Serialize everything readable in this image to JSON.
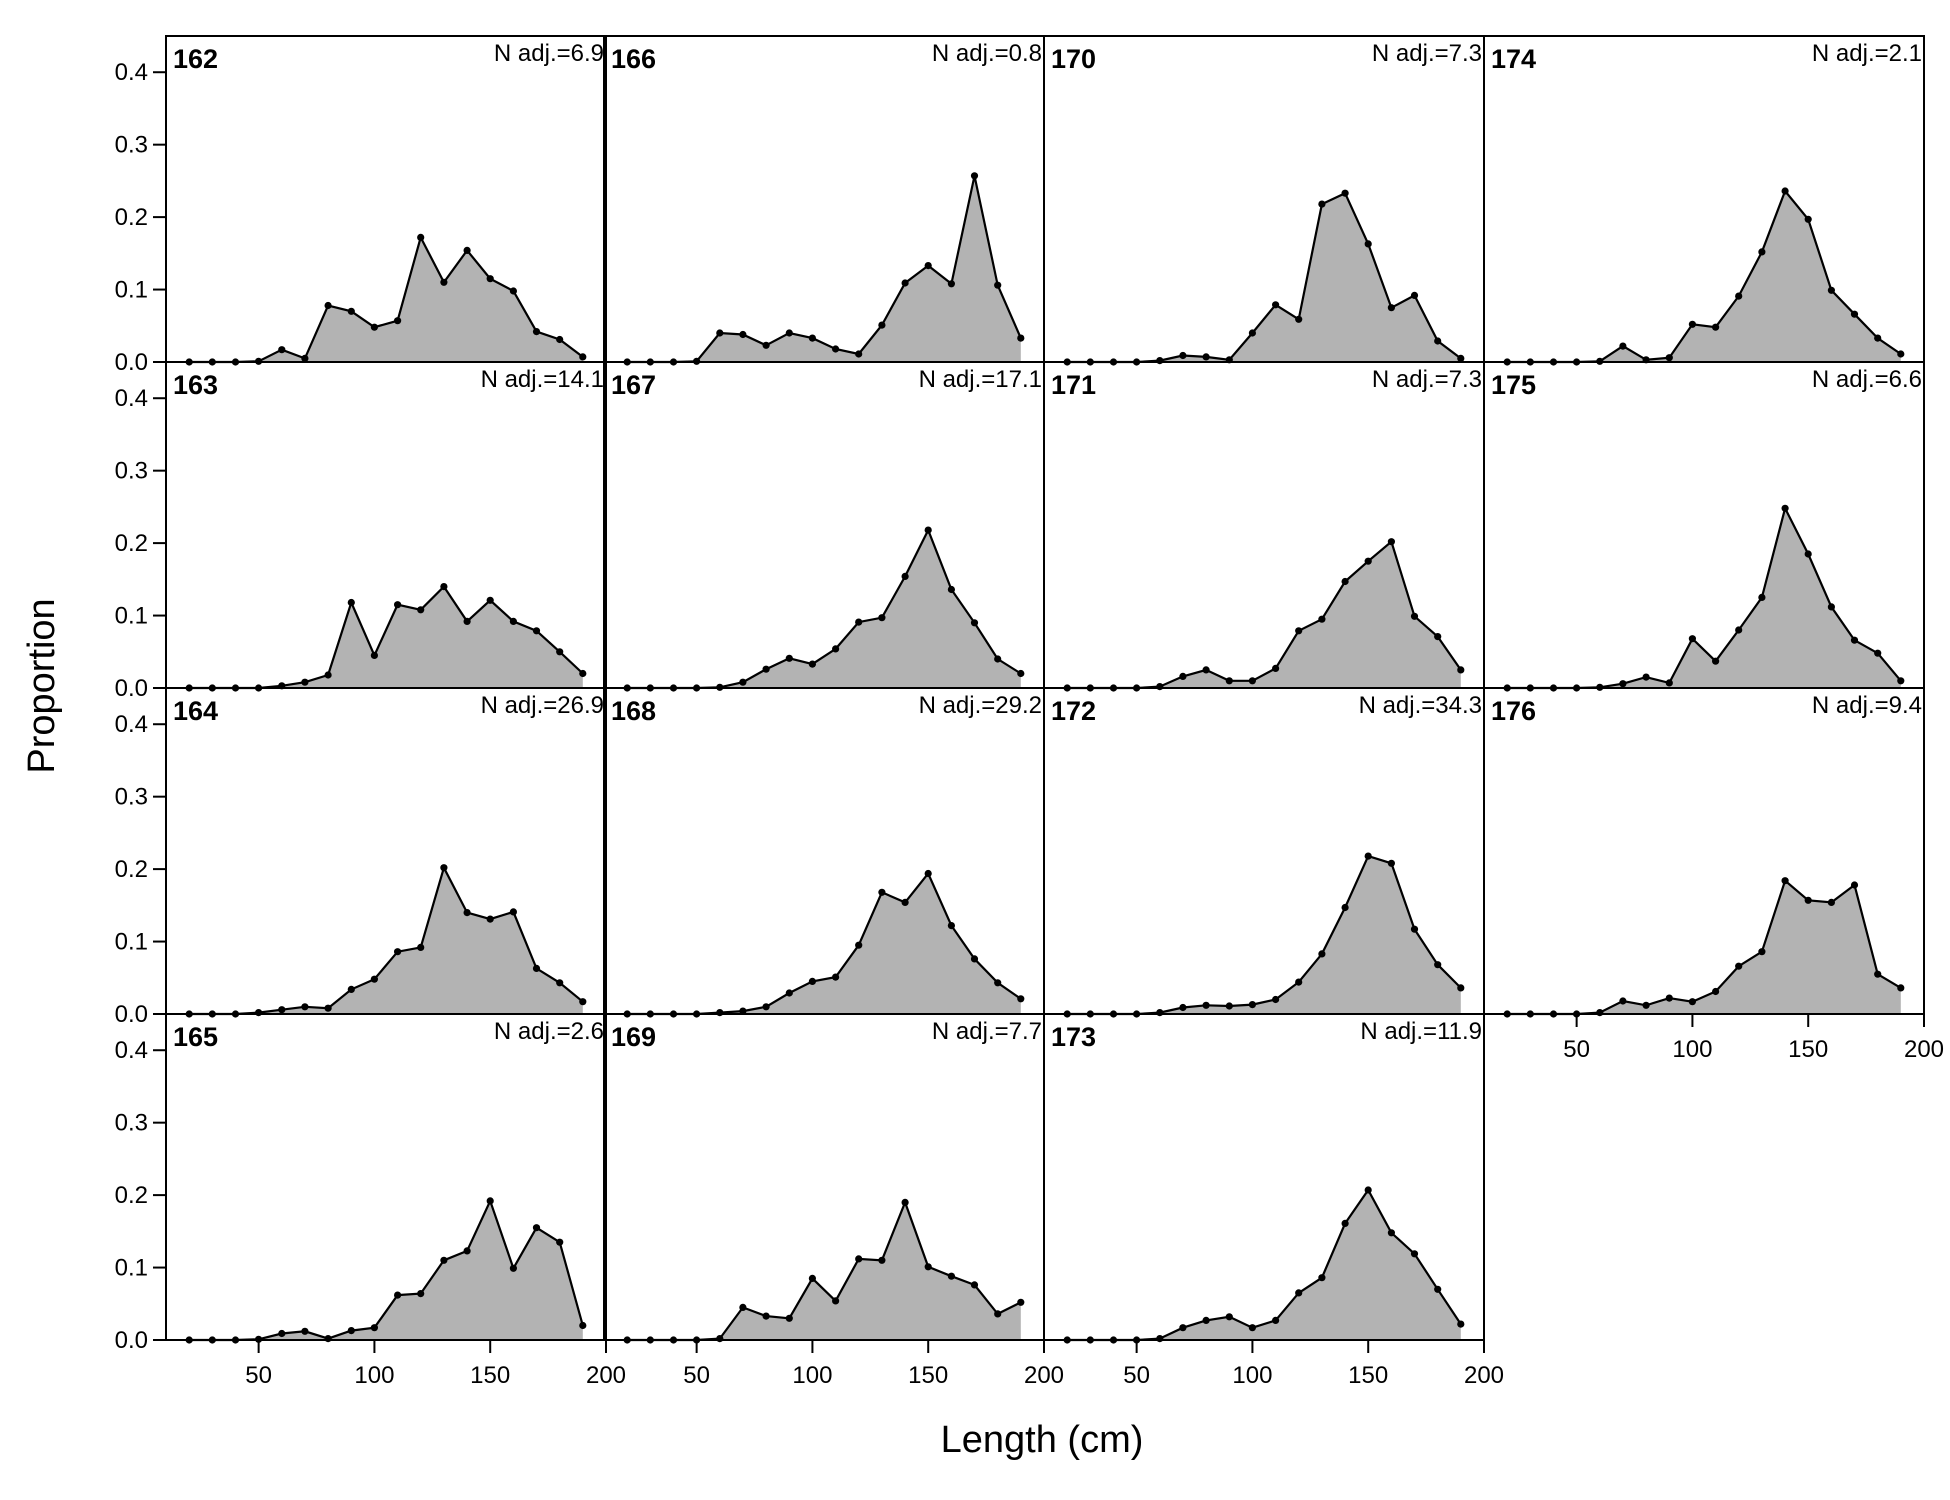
{
  "chart_data": {
    "type": "area",
    "xlabel": "Length (cm)",
    "ylabel": "Proportion",
    "xlim": [
      10,
      200
    ],
    "ylim": [
      0,
      0.45
    ],
    "x_ticks": [
      50,
      100,
      150,
      200
    ],
    "y_ticks": [
      "0.0",
      "0.1",
      "0.2",
      "0.3",
      "0.4"
    ],
    "x": [
      20,
      30,
      40,
      50,
      60,
      70,
      80,
      90,
      100,
      110,
      120,
      130,
      140,
      150,
      160,
      170,
      180,
      190
    ],
    "fill_color": "#b3b3b3",
    "line_color": "#000000",
    "grid": false,
    "panels": [
      {
        "label": "162",
        "nadj": "N adj.=6.9",
        "values": [
          0,
          0,
          0,
          0.001,
          0.017,
          0.005,
          0.078,
          0.07,
          0.048,
          0.057,
          0.172,
          0.11,
          0.154,
          0.115,
          0.098,
          0.042,
          0.031,
          0.007
        ]
      },
      {
        "label": "163",
        "nadj": "N adj.=14.1",
        "values": [
          0,
          0,
          0,
          0,
          0.003,
          0.008,
          0.018,
          0.118,
          0.045,
          0.115,
          0.108,
          0.14,
          0.092,
          0.121,
          0.092,
          0.079,
          0.05,
          0.02
        ]
      },
      {
        "label": "164",
        "nadj": "N adj.=26.9",
        "values": [
          0,
          0,
          0,
          0.002,
          0.006,
          0.01,
          0.008,
          0.034,
          0.048,
          0.086,
          0.092,
          0.202,
          0.14,
          0.131,
          0.141,
          0.063,
          0.043,
          0.017
        ]
      },
      {
        "label": "165",
        "nadj": "N adj.=2.6",
        "values": [
          0,
          0,
          0,
          0.001,
          0.009,
          0.012,
          0.002,
          0.013,
          0.017,
          0.062,
          0.064,
          0.11,
          0.123,
          0.192,
          0.099,
          0.155,
          0.135,
          0.02
        ]
      },
      {
        "label": "166",
        "nadj": "N adj.=0.8",
        "values": [
          0,
          0,
          0,
          0.001,
          0.04,
          0.038,
          0.023,
          0.04,
          0.033,
          0.018,
          0.011,
          0.051,
          0.109,
          0.133,
          0.108,
          0.257,
          0.106,
          0.033
        ]
      },
      {
        "label": "167",
        "nadj": "N adj.=17.1",
        "values": [
          0,
          0,
          0,
          0,
          0.001,
          0.008,
          0.026,
          0.041,
          0.033,
          0.054,
          0.091,
          0.097,
          0.154,
          0.218,
          0.136,
          0.09,
          0.04,
          0.02
        ]
      },
      {
        "label": "168",
        "nadj": "N adj.=29.2",
        "values": [
          0,
          0,
          0,
          0,
          0.002,
          0.004,
          0.01,
          0.029,
          0.045,
          0.051,
          0.095,
          0.168,
          0.154,
          0.194,
          0.122,
          0.076,
          0.043,
          0.021
        ]
      },
      {
        "label": "169",
        "nadj": "N adj.=7.7",
        "values": [
          0,
          0,
          0,
          0,
          0.002,
          0.045,
          0.033,
          0.03,
          0.085,
          0.054,
          0.112,
          0.11,
          0.19,
          0.101,
          0.088,
          0.076,
          0.036,
          0.052
        ]
      },
      {
        "label": "170",
        "nadj": "N adj.=7.3",
        "values": [
          0,
          0,
          0,
          0,
          0.002,
          0.009,
          0.007,
          0.003,
          0.04,
          0.079,
          0.059,
          0.218,
          0.233,
          0.163,
          0.075,
          0.092,
          0.029,
          0.005
        ]
      },
      {
        "label": "171",
        "nadj": "N adj.=7.3",
        "values": [
          0,
          0,
          0,
          0,
          0.002,
          0.016,
          0.025,
          0.01,
          0.01,
          0.027,
          0.079,
          0.095,
          0.147,
          0.175,
          0.202,
          0.099,
          0.071,
          0.025
        ]
      },
      {
        "label": "172",
        "nadj": "N adj.=34.3",
        "values": [
          0,
          0,
          0,
          0,
          0.002,
          0.009,
          0.012,
          0.011,
          0.013,
          0.02,
          0.044,
          0.083,
          0.147,
          0.218,
          0.208,
          0.117,
          0.068,
          0.036
        ]
      },
      {
        "label": "173",
        "nadj": "N adj.=11.9",
        "values": [
          0,
          0,
          0,
          0,
          0.002,
          0.017,
          0.027,
          0.032,
          0.017,
          0.027,
          0.065,
          0.086,
          0.161,
          0.207,
          0.148,
          0.119,
          0.07,
          0.022
        ]
      },
      {
        "label": "174",
        "nadj": "N adj.=2.1",
        "values": [
          0,
          0,
          0,
          0,
          0.001,
          0.022,
          0.003,
          0.006,
          0.052,
          0.048,
          0.091,
          0.152,
          0.236,
          0.197,
          0.099,
          0.066,
          0.033,
          0.011
        ]
      },
      {
        "label": "175",
        "nadj": "N adj.=6.6",
        "values": [
          0,
          0,
          0,
          0,
          0.001,
          0.006,
          0.015,
          0.007,
          0.068,
          0.037,
          0.08,
          0.125,
          0.248,
          0.185,
          0.112,
          0.066,
          0.048,
          0.01
        ]
      },
      {
        "label": "176",
        "nadj": "N adj.=9.4",
        "values": [
          0,
          0,
          0,
          0,
          0.002,
          0.018,
          0.012,
          0.022,
          0.017,
          0.031,
          0.066,
          0.086,
          0.184,
          0.157,
          0.154,
          0.178,
          0.055,
          0.036
        ]
      }
    ]
  }
}
